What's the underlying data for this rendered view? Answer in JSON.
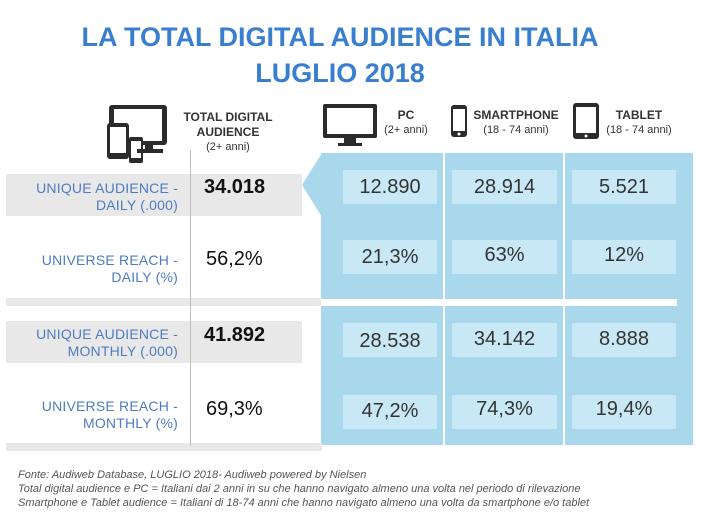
{
  "title": {
    "line1": "LA TOTAL DIGITAL AUDIENCE IN ITALIA",
    "line2": "LUGLIO 2018"
  },
  "columns": {
    "total": {
      "title": "TOTAL DIGITAL AUDIENCE",
      "sub": "(2+ anni)",
      "icon": "multi-device-icon"
    },
    "pc": {
      "title": "PC",
      "sub": "(2+ anni)",
      "icon": "monitor-icon"
    },
    "smartphone": {
      "title": "SMARTPHONE",
      "sub": "(18 - 74 anni)",
      "icon": "smartphone-icon"
    },
    "tablet": {
      "title": "TABLET",
      "sub": "(18 - 74 anni)",
      "icon": "tablet-icon"
    }
  },
  "rows": [
    {
      "label1": "UNIQUE AUDIENCE  -",
      "label2": "DAILY (.000)",
      "total": "34.018",
      "pc": "12.890",
      "smartphone": "28.914",
      "tablet": "5.521"
    },
    {
      "label1": "UNIVERSE REACH -",
      "label2": "DAILY (%)",
      "total": "56,2%",
      "pc": "21,3%",
      "smartphone": "63%",
      "tablet": "12%"
    },
    {
      "label1": "UNIQUE AUDIENCE -",
      "label2": "MONTHLY (.000)",
      "total": "41.892",
      "pc": "28.538",
      "smartphone": "34.142",
      "tablet": "8.888"
    },
    {
      "label1": "UNIVERSE REACH -",
      "label2": "MONTHLY (%)",
      "total": "69,3%",
      "pc": "47,2%",
      "smartphone": "74,3%",
      "tablet": "19,4%"
    }
  ],
  "footer": {
    "line1": "Fonte: Audiweb Database, LUGLIO 2018- Audiweb powered by Nielsen",
    "line2": "Total digital audience e PC = Italiani dai 2 anni in su che hanno navigato almeno una volta nel periodo di rilevazione",
    "line3": "Smartphone e Tablet audience = Italiani di 18-74 anni che hanno navigato almeno una volta da smartphone e/o tablet"
  },
  "colors": {
    "title": "#3a7fcf",
    "label": "#4e7cc2",
    "panel": "#a9d7ec",
    "cell": "#c9e8f5",
    "grey": "#e8e8e8"
  }
}
